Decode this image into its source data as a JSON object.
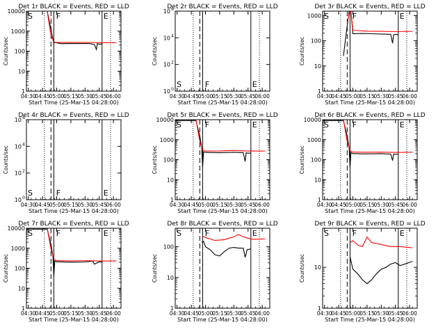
{
  "figure": {
    "xlabel": "Start Time (25-Mar-15 04:28:00)",
    "ylabel": "Counts/sec",
    "x_ticks": [
      "04:30",
      "04:45",
      "05:00",
      "05:15",
      "05:30",
      "05:45",
      "06:00"
    ],
    "colors": {
      "events": "#000000",
      "lld": "#ff0000",
      "axis": "#000000"
    }
  },
  "chart_data": [
    {
      "type": "line",
      "title": "Det 1r BLACK = Events, RED = LLD",
      "x_range": [
        "04:28",
        "06:08"
      ],
      "y_scale": "log",
      "ytick_labels": [
        "1",
        "10",
        "100",
        "1000",
        "10000"
      ],
      "ylim": [
        1,
        10000
      ],
      "vlines": [
        {
          "x": "04:47",
          "style": "dotted"
        },
        {
          "x": "04:54",
          "style": "dashed"
        },
        {
          "x": "04:57",
          "style": "solid"
        },
        {
          "x": "05:48",
          "style": "solid"
        },
        {
          "x": "05:57",
          "style": "dotted"
        }
      ],
      "markers": [
        {
          "label": "S",
          "x": "04:28"
        },
        {
          "label": "F",
          "x": "04:58"
        },
        {
          "label": "E",
          "x": "05:48"
        }
      ],
      "series": [
        {
          "name": "Events",
          "color": "#000000",
          "x": [
            "04:28",
            "04:50",
            "04:54",
            "04:56",
            "04:57",
            "04:58",
            "05:00",
            "05:05",
            "05:15",
            "05:25",
            "05:35",
            "05:40",
            "05:42",
            "05:43",
            "05:45",
            "05:48"
          ],
          "y": [
            11000,
            11000,
            1200,
            400,
            250,
            280,
            260,
            235,
            240,
            240,
            240,
            210,
            120,
            240,
            220,
            230
          ]
        },
        {
          "name": "LLD",
          "color": "#ff0000",
          "x": [
            "04:28",
            "04:50",
            "04:54",
            "04:57",
            "05:00",
            "05:15",
            "05:30",
            "05:45",
            "06:03"
          ],
          "y": [
            12000,
            12000,
            600,
            290,
            270,
            270,
            275,
            265,
            265
          ]
        }
      ]
    },
    {
      "type": "line",
      "title": "Det 2r BLACK = Events, RED = LLD",
      "x_range": [
        "04:28",
        "06:08"
      ],
      "y_scale": "linear",
      "ytick_labels": [
        "10^0",
        "10^2",
        "10^4",
        "10^6"
      ],
      "ylim": [
        0,
        6
      ],
      "vlines": [
        {
          "x": "04:47",
          "style": "dotted"
        },
        {
          "x": "04:54",
          "style": "dashed"
        },
        {
          "x": "04:57",
          "style": "solid"
        },
        {
          "x": "05:48",
          "style": "solid"
        },
        {
          "x": "05:57",
          "style": "dotted"
        }
      ],
      "markers": [
        {
          "label": "S",
          "x": "04:28"
        },
        {
          "label": "F",
          "x": "04:58"
        },
        {
          "label": "E",
          "x": "05:48"
        }
      ],
      "series": []
    },
    {
      "type": "line",
      "title": "Det 3r BLACK = Events, RED = LLD",
      "x_range": [
        "04:28",
        "06:08"
      ],
      "y_scale": "log",
      "ytick_labels": [
        "1",
        "10",
        "100",
        "1000"
      ],
      "ylim": [
        1,
        1500
      ],
      "vlines": [
        {
          "x": "04:47",
          "style": "dotted"
        },
        {
          "x": "04:54",
          "style": "dashed"
        },
        {
          "x": "04:57",
          "style": "solid"
        },
        {
          "x": "05:48",
          "style": "solid"
        },
        {
          "x": "05:57",
          "style": "dotted"
        }
      ],
      "markers": [
        {
          "label": "S",
          "x": "04:28"
        },
        {
          "label": "F",
          "x": "04:58"
        },
        {
          "label": "E",
          "x": "05:48"
        }
      ],
      "series": [
        {
          "name": "Events",
          "color": "#000000",
          "x": [
            "04:50",
            "04:54",
            "04:56",
            "04:58",
            "05:00",
            "05:10",
            "05:20",
            "05:30",
            "05:40",
            "05:42",
            "05:43",
            "05:45",
            "05:48"
          ],
          "y": [
            25,
            400,
            2000,
            2000,
            190,
            195,
            190,
            185,
            180,
            80,
            170,
            180,
            175
          ]
        },
        {
          "name": "LLD",
          "color": "#ff0000",
          "x": [
            "04:54",
            "04:56",
            "04:58",
            "05:00",
            "05:15",
            "05:30",
            "05:45",
            "06:03"
          ],
          "y": [
            500,
            1200,
            2000,
            260,
            240,
            235,
            230,
            235
          ]
        }
      ]
    },
    {
      "type": "line",
      "title": "Det 4r BLACK = Events, RED = LLD",
      "x_range": [
        "04:28",
        "06:08"
      ],
      "y_scale": "linear",
      "ytick_labels": [
        "10^0",
        "10^2",
        "10^4",
        "10^6"
      ],
      "ylim": [
        0,
        6
      ],
      "vlines": [
        {
          "x": "04:47",
          "style": "dotted"
        },
        {
          "x": "04:54",
          "style": "dashed"
        },
        {
          "x": "04:57",
          "style": "solid"
        },
        {
          "x": "05:48",
          "style": "solid"
        },
        {
          "x": "05:57",
          "style": "dotted"
        }
      ],
      "markers": [
        {
          "label": "S",
          "x": "04:28"
        },
        {
          "label": "F",
          "x": "04:58"
        },
        {
          "label": "E",
          "x": "05:48"
        }
      ],
      "series": []
    },
    {
      "type": "line",
      "title": "Det 5r BLACK = Events, RED = LLD",
      "x_range": [
        "04:28",
        "06:08"
      ],
      "y_scale": "log",
      "ytick_labels": [
        "1",
        "10",
        "100",
        "1000",
        "10000"
      ],
      "ylim": [
        1,
        10000
      ],
      "vlines": [
        {
          "x": "04:47",
          "style": "dotted"
        },
        {
          "x": "04:54",
          "style": "dashed"
        },
        {
          "x": "04:57",
          "style": "solid"
        },
        {
          "x": "05:48",
          "style": "solid"
        },
        {
          "x": "05:57",
          "style": "dotted"
        }
      ],
      "markers": [
        {
          "label": "S",
          "x": "04:28"
        },
        {
          "label": "F",
          "x": "04:58"
        },
        {
          "label": "E",
          "x": "05:48"
        }
      ],
      "series": [
        {
          "name": "Events",
          "color": "#000000",
          "x": [
            "04:28",
            "04:50",
            "04:54",
            "04:56",
            "04:57",
            "04:58",
            "05:00",
            "05:15",
            "05:30",
            "05:40",
            "05:42",
            "05:43",
            "05:45",
            "05:48"
          ],
          "y": [
            9000,
            9000,
            1500,
            400,
            40,
            250,
            230,
            225,
            235,
            225,
            80,
            220,
            210,
            215
          ]
        },
        {
          "name": "LLD",
          "color": "#ff0000",
          "x": [
            "04:28",
            "04:50",
            "04:54",
            "04:57",
            "05:00",
            "05:15",
            "05:30",
            "05:45",
            "06:03"
          ],
          "y": [
            10000,
            10000,
            800,
            300,
            270,
            275,
            290,
            270,
            270
          ]
        }
      ]
    },
    {
      "type": "line",
      "title": "Det 6r BLACK = Events, RED = LLD",
      "x_range": [
        "04:28",
        "06:08"
      ],
      "y_scale": "log",
      "ytick_labels": [
        "1",
        "10",
        "100",
        "1000",
        "10000"
      ],
      "ylim": [
        1,
        10000
      ],
      "vlines": [
        {
          "x": "04:47",
          "style": "dotted"
        },
        {
          "x": "04:54",
          "style": "dashed"
        },
        {
          "x": "04:57",
          "style": "solid"
        },
        {
          "x": "05:48",
          "style": "solid"
        },
        {
          "x": "05:57",
          "style": "dotted"
        }
      ],
      "markers": [
        {
          "label": "S",
          "x": "04:28"
        },
        {
          "label": "F",
          "x": "04:58"
        },
        {
          "label": "E",
          "x": "05:48"
        }
      ],
      "series": [
        {
          "name": "Events",
          "color": "#000000",
          "x": [
            "04:28",
            "04:50",
            "04:54",
            "04:56",
            "04:57",
            "04:58",
            "05:00",
            "05:15",
            "05:30",
            "05:40",
            "05:42",
            "05:43",
            "05:45",
            "05:48"
          ],
          "y": [
            9000,
            9000,
            1500,
            400,
            40,
            230,
            200,
            195,
            200,
            190,
            90,
            190,
            185,
            190
          ]
        },
        {
          "name": "LLD",
          "color": "#ff0000",
          "x": [
            "04:28",
            "04:50",
            "04:54",
            "04:57",
            "05:00",
            "05:15",
            "05:30",
            "05:45",
            "06:03"
          ],
          "y": [
            10000,
            10000,
            800,
            280,
            240,
            235,
            240,
            230,
            235
          ]
        }
      ]
    },
    {
      "type": "line",
      "title": "Det 7r BLACK = Events, RED = LLD",
      "x_range": [
        "04:28",
        "06:08"
      ],
      "y_scale": "log",
      "ytick_labels": [
        "1",
        "10",
        "100",
        "1000",
        "10000"
      ],
      "ylim": [
        1,
        10000
      ],
      "vlines": [
        {
          "x": "04:47",
          "style": "dotted"
        },
        {
          "x": "04:54",
          "style": "dashed"
        },
        {
          "x": "04:57",
          "style": "solid"
        },
        {
          "x": "05:48",
          "style": "solid"
        },
        {
          "x": "05:57",
          "style": "dotted"
        }
      ],
      "markers": [
        {
          "label": "S",
          "x": "04:28"
        },
        {
          "label": "F",
          "x": "04:58"
        },
        {
          "label": "E",
          "x": "05:48"
        }
      ],
      "series": [
        {
          "name": "Events",
          "color": "#000000",
          "x": [
            "04:28",
            "04:50",
            "04:54",
            "04:56",
            "04:57",
            "04:58",
            "05:00",
            "05:15",
            "05:30",
            "05:38",
            "05:40",
            "05:45",
            "05:48"
          ],
          "y": [
            9000,
            9000,
            1500,
            400,
            40,
            230,
            210,
            200,
            205,
            230,
            160,
            210,
            200
          ]
        },
        {
          "name": "LLD",
          "color": "#ff0000",
          "x": [
            "04:28",
            "04:50",
            "04:54",
            "04:57",
            "05:00",
            "05:15",
            "05:30",
            "05:45",
            "06:03"
          ],
          "y": [
            10000,
            10000,
            900,
            280,
            240,
            230,
            240,
            230,
            230
          ]
        }
      ]
    },
    {
      "type": "line",
      "title": "Det 8r BLACK = Events, RED = LLD",
      "x_range": [
        "04:28",
        "06:08"
      ],
      "y_scale": "log",
      "ytick_labels": [
        "1",
        "10",
        "100"
      ],
      "ylim": [
        1,
        400
      ],
      "vlines": [
        {
          "x": "04:47",
          "style": "dotted"
        },
        {
          "x": "04:54",
          "style": "dashed"
        },
        {
          "x": "04:57",
          "style": "solid"
        },
        {
          "x": "05:48",
          "style": "solid"
        },
        {
          "x": "05:57",
          "style": "dotted"
        }
      ],
      "markers": [
        {
          "label": "S",
          "x": "04:28"
        },
        {
          "label": "F",
          "x": "04:58"
        },
        {
          "label": "E",
          "x": "05:48"
        }
      ],
      "series": [
        {
          "name": "Events",
          "color": "#000000",
          "x": [
            "04:56",
            "04:58",
            "05:00",
            "05:05",
            "05:10",
            "05:15",
            "05:20",
            "05:25",
            "05:30",
            "05:35",
            "05:40",
            "05:42",
            "05:44",
            "05:48"
          ],
          "y": [
            140,
            150,
            100,
            80,
            55,
            50,
            70,
            90,
            95,
            90,
            90,
            45,
            80,
            85
          ]
        },
        {
          "name": "LLD",
          "color": "#ff0000",
          "x": [
            "04:57",
            "05:00",
            "05:10",
            "05:20",
            "05:25",
            "05:30",
            "05:35",
            "05:40",
            "05:45",
            "05:50",
            "06:03"
          ],
          "y": [
            220,
            200,
            160,
            170,
            190,
            210,
            250,
            210,
            190,
            175,
            180
          ]
        }
      ]
    },
    {
      "type": "line",
      "title": "Det 9r BLACK = Events, RED = LLD",
      "x_range": [
        "04:28",
        "06:08"
      ],
      "y_scale": "log",
      "ytick_labels": [
        "1",
        "10"
      ],
      "ylim": [
        1,
        90
      ],
      "vlines": [
        {
          "x": "04:47",
          "style": "dotted"
        },
        {
          "x": "04:54",
          "style": "dashed"
        },
        {
          "x": "04:57",
          "style": "solid"
        },
        {
          "x": "05:48",
          "style": "solid"
        },
        {
          "x": "05:57",
          "style": "dotted"
        }
      ],
      "markers": [
        {
          "label": "S",
          "x": "04:28"
        },
        {
          "label": "F",
          "x": "04:58"
        },
        {
          "label": "E",
          "x": "05:48"
        }
      ],
      "series": [
        {
          "name": "Events",
          "color": "#000000",
          "x": [
            "04:57",
            "05:00",
            "05:05",
            "05:10",
            "05:15",
            "05:20",
            "05:25",
            "05:30",
            "05:35",
            "05:40",
            "05:45",
            "05:50",
            "05:55",
            "06:03"
          ],
          "y": [
            18,
            9,
            7,
            5,
            4,
            5,
            7,
            9,
            10,
            12,
            13,
            11,
            12,
            14
          ]
        },
        {
          "name": "LLD",
          "color": "#ff0000",
          "x": [
            "04:57",
            "05:00",
            "05:05",
            "05:10",
            "05:15",
            "05:20",
            "05:25",
            "05:30",
            "05:40",
            "05:50",
            "06:03"
          ],
          "y": [
            40,
            45,
            35,
            32,
            55,
            40,
            38,
            36,
            32,
            32,
            30
          ]
        }
      ]
    }
  ]
}
